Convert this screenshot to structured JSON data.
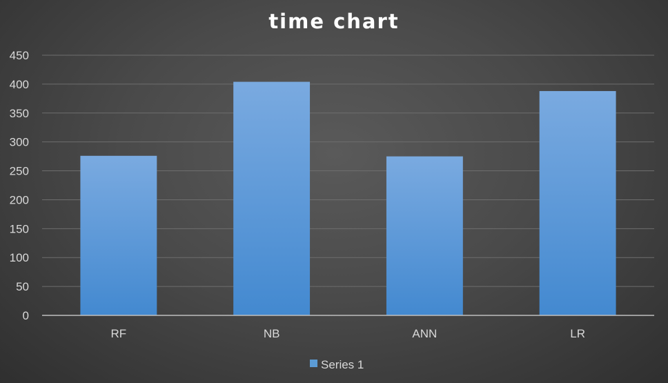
{
  "chart_data": {
    "type": "bar",
    "title": "time chart",
    "xlabel": "",
    "ylabel": "",
    "categories": [
      "RF",
      "NB",
      "ANN",
      "LR"
    ],
    "series": [
      {
        "name": "Series 1",
        "values": [
          276,
          404,
          275,
          388
        ]
      }
    ],
    "ylim": [
      0,
      450
    ],
    "yticks": [
      0,
      50,
      100,
      150,
      200,
      250,
      300,
      350,
      400,
      450
    ],
    "grid": true,
    "legend_position": "bottom"
  },
  "colors": {
    "bar_top": "#7aaae0",
    "bar_bottom": "#4389d0",
    "legend_swatch": "#5b9bd5"
  }
}
